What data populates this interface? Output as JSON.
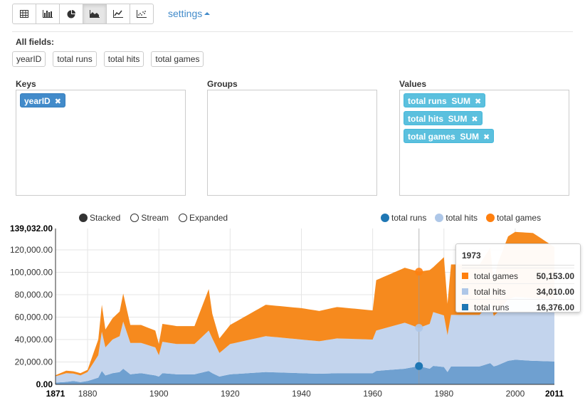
{
  "toolbar": {
    "buttons": [
      {
        "name": "table-view-button",
        "icon": "table-icon"
      },
      {
        "name": "bar-chart-button",
        "icon": "bar-chart-icon"
      },
      {
        "name": "pie-chart-button",
        "icon": "pie-chart-icon"
      },
      {
        "name": "area-chart-button",
        "icon": "area-chart-icon",
        "active": true
      },
      {
        "name": "line-chart-button",
        "icon": "line-chart-icon"
      },
      {
        "name": "scatter-chart-button",
        "icon": "scatter-chart-icon"
      }
    ],
    "settings_label": "settings"
  },
  "all_fields": {
    "label": "All fields:",
    "items": [
      "yearID",
      "total runs",
      "total hits",
      "total games"
    ]
  },
  "keys": {
    "label": "Keys",
    "items": [
      "yearID"
    ]
  },
  "groups": {
    "label": "Groups",
    "items": []
  },
  "values": {
    "label": "Values",
    "items": [
      "total runs  SUM",
      "total hits  SUM",
      "total games  SUM"
    ]
  },
  "controls": {
    "modes": [
      "Stacked",
      "Stream",
      "Expanded"
    ],
    "selected_mode": "Stacked"
  },
  "legend": [
    {
      "label": "total runs",
      "color": "#1f77b4"
    },
    {
      "label": "total hits",
      "color": "#aec7e8"
    },
    {
      "label": "total games",
      "color": "#ff7f0e"
    }
  ],
  "tooltip": {
    "title": "1973",
    "rows": [
      {
        "label": "total games",
        "value": "50,153.00",
        "color": "#ff7f0e"
      },
      {
        "label": "total hits",
        "value": "34,010.00",
        "color": "#aec7e8"
      },
      {
        "label": "total runs",
        "value": "16,376.00",
        "color": "#1f77b4"
      }
    ]
  },
  "chart_data": {
    "type": "area",
    "stacked": true,
    "x_label_min": "1871",
    "x_label_max": "2011",
    "y_label_max": "139,032.00",
    "x_ticks": [
      1880,
      1900,
      1920,
      1940,
      1960,
      1980,
      2000
    ],
    "y_ticks": [
      "0.00",
      "20,000.00",
      "40,000.00",
      "60,000.00",
      "80,000.00",
      "100,000.00",
      "120,000.00"
    ],
    "xlim": [
      1871,
      2011
    ],
    "ylim": [
      0,
      139032
    ],
    "highlight_x": 1973,
    "series_colors": {
      "total runs": "#1f77b4",
      "total hits": "#aec7e8",
      "total games": "#ff7f0e"
    },
    "series_fill": {
      "total runs": "#6fa0d0",
      "total hits": "#c3d4ed",
      "total games": "#f68a1e"
    },
    "series_anchors": {
      "total runs": [
        [
          1871,
          1600
        ],
        [
          1874,
          2200
        ],
        [
          1876,
          3000
        ],
        [
          1878,
          2000
        ],
        [
          1880,
          3000
        ],
        [
          1883,
          6000
        ],
        [
          1884,
          12000
        ],
        [
          1885,
          8000
        ],
        [
          1887,
          10000
        ],
        [
          1889,
          11000
        ],
        [
          1890,
          14000
        ],
        [
          1892,
          9000
        ],
        [
          1895,
          10000
        ],
        [
          1899,
          8000
        ],
        [
          1900,
          7000
        ],
        [
          1901,
          10000
        ],
        [
          1905,
          9000
        ],
        [
          1910,
          9000
        ],
        [
          1914,
          12000
        ],
        [
          1915,
          10000
        ],
        [
          1917,
          7000
        ],
        [
          1920,
          9000
        ],
        [
          1930,
          11000
        ],
        [
          1940,
          10000
        ],
        [
          1945,
          9500
        ],
        [
          1950,
          10000
        ],
        [
          1960,
          10000
        ],
        [
          1961,
          12000
        ],
        [
          1969,
          14000
        ],
        [
          1973,
          16376
        ],
        [
          1976,
          14000
        ],
        [
          1977,
          16500
        ],
        [
          1980,
          15500
        ],
        [
          1981,
          11000
        ],
        [
          1982,
          16000
        ],
        [
          1990,
          16000
        ],
        [
          1993,
          19000
        ],
        [
          1994,
          16000
        ],
        [
          1995,
          17000
        ],
        [
          1998,
          21000
        ],
        [
          2000,
          22000
        ],
        [
          2005,
          21000
        ],
        [
          2011,
          20500
        ]
      ],
      "total hits": [
        [
          1871,
          5600
        ],
        [
          1874,
          7800
        ],
        [
          1876,
          6700
        ],
        [
          1878,
          6000
        ],
        [
          1880,
          8000
        ],
        [
          1883,
          20000
        ],
        [
          1884,
          35000
        ],
        [
          1885,
          25000
        ],
        [
          1887,
          30000
        ],
        [
          1889,
          32000
        ],
        [
          1890,
          42000
        ],
        [
          1892,
          28000
        ],
        [
          1895,
          27000
        ],
        [
          1899,
          25000
        ],
        [
          1900,
          19000
        ],
        [
          1901,
          28000
        ],
        [
          1905,
          27000
        ],
        [
          1910,
          27000
        ],
        [
          1914,
          36000
        ],
        [
          1915,
          31000
        ],
        [
          1917,
          21000
        ],
        [
          1920,
          27000
        ],
        [
          1930,
          32000
        ],
        [
          1940,
          30000
        ],
        [
          1945,
          29000
        ],
        [
          1950,
          31000
        ],
        [
          1960,
          30000
        ],
        [
          1961,
          36000
        ],
        [
          1969,
          41000
        ],
        [
          1973,
          34010
        ],
        [
          1976,
          40000
        ],
        [
          1977,
          48000
        ],
        [
          1980,
          46000
        ],
        [
          1981,
          33000
        ],
        [
          1982,
          46000
        ],
        [
          1990,
          46000
        ],
        [
          1993,
          54000
        ],
        [
          1994,
          45000
        ],
        [
          1995,
          47000
        ],
        [
          1998,
          55000
        ],
        [
          2000,
          56000
        ],
        [
          2005,
          56000
        ],
        [
          2011,
          56000
        ]
      ],
      "total games": [
        [
          1871,
          1000
        ],
        [
          1874,
          2200
        ],
        [
          1876,
          2000
        ],
        [
          1878,
          2000
        ],
        [
          1880,
          2000
        ],
        [
          1883,
          14000
        ],
        [
          1884,
          24000
        ],
        [
          1885,
          16000
        ],
        [
          1887,
          19000
        ],
        [
          1889,
          22000
        ],
        [
          1890,
          25000
        ],
        [
          1892,
          16000
        ],
        [
          1895,
          16000
        ],
        [
          1899,
          15000
        ],
        [
          1900,
          10000
        ],
        [
          1901,
          16000
        ],
        [
          1905,
          16000
        ],
        [
          1910,
          16000
        ],
        [
          1914,
          37000
        ],
        [
          1915,
          22000
        ],
        [
          1917,
          13000
        ],
        [
          1920,
          17000
        ],
        [
          1930,
          28000
        ],
        [
          1940,
          28000
        ],
        [
          1945,
          27000
        ],
        [
          1950,
          28000
        ],
        [
          1960,
          26000
        ],
        [
          1961,
          45000
        ],
        [
          1969,
          49000
        ],
        [
          1973,
          50153
        ],
        [
          1976,
          48000
        ],
        [
          1977,
          40000
        ],
        [
          1980,
          52000
        ],
        [
          1981,
          28000
        ],
        [
          1982,
          45000
        ],
        [
          1990,
          45000
        ],
        [
          1993,
          49000
        ],
        [
          1994,
          30000
        ],
        [
          1995,
          43000
        ],
        [
          1998,
          56000
        ],
        [
          2000,
          58000
        ],
        [
          2005,
          58000
        ],
        [
          2011,
          46000
        ]
      ]
    }
  }
}
